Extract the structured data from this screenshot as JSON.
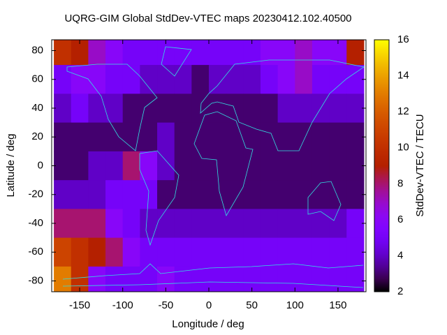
{
  "chart_data": {
    "type": "heatmap",
    "title": "UQRG-GIM Global StdDev-VTEC maps 20230412.102.40500",
    "x_label": "Longitude / deg",
    "y_label": "Latitude / deg",
    "colorbar_label": "StdDev-VTEC / TECU",
    "x": [
      -170,
      -150,
      -130,
      -110,
      -90,
      -70,
      -50,
      -30,
      -10,
      10,
      30,
      50,
      70,
      90,
      110,
      130,
      150,
      170
    ],
    "y": [
      80,
      60,
      40,
      20,
      0,
      -20,
      -40,
      -60,
      -80
    ],
    "z": [
      [
        10,
        9,
        7,
        6,
        5,
        5,
        5,
        5,
        5,
        5,
        5,
        5,
        6,
        6,
        7,
        6,
        6,
        9
      ],
      [
        5,
        6,
        6,
        5,
        5,
        4,
        4,
        4,
        3,
        4,
        4,
        4,
        5,
        6,
        7,
        5,
        5,
        5
      ],
      [
        4,
        5,
        4,
        4,
        3,
        3,
        3,
        3,
        3,
        3,
        3,
        3,
        3,
        4,
        4,
        4,
        4,
        4
      ],
      [
        3,
        3,
        3,
        3,
        3,
        3,
        4,
        3,
        3,
        3,
        3,
        3,
        3,
        3,
        3,
        3,
        3,
        3
      ],
      [
        3,
        3,
        4,
        4,
        8,
        6,
        4,
        3,
        3,
        3,
        3,
        3,
        3,
        3,
        3,
        3,
        3,
        3
      ],
      [
        4,
        4,
        4,
        5,
        5,
        5,
        3,
        3,
        3,
        3,
        3,
        3,
        3,
        3,
        3,
        3,
        3,
        3
      ],
      [
        8,
        8,
        8,
        6,
        5,
        4,
        4,
        4,
        4,
        4,
        4,
        4,
        4,
        4,
        4,
        4,
        4,
        5
      ],
      [
        11,
        10,
        9,
        8,
        6,
        5,
        5,
        5,
        5,
        5,
        5,
        5,
        5,
        5,
        5,
        5,
        5,
        5
      ],
      [
        13,
        10,
        6,
        5,
        5,
        5,
        6,
        5,
        5,
        5,
        5,
        5,
        5,
        5,
        5,
        5,
        5,
        5
      ]
    ],
    "xlim": [
      -182.5,
      182.5
    ],
    "ylim": [
      -87.5,
      87.5
    ],
    "xticks": [
      -150,
      -100,
      -50,
      0,
      50,
      100,
      150
    ],
    "yticks": [
      -80,
      -60,
      -40,
      -20,
      0,
      20,
      40,
      60,
      80
    ],
    "clim": [
      2,
      16
    ],
    "cticks": [
      2,
      4,
      6,
      8,
      10,
      12,
      14,
      16
    ]
  }
}
